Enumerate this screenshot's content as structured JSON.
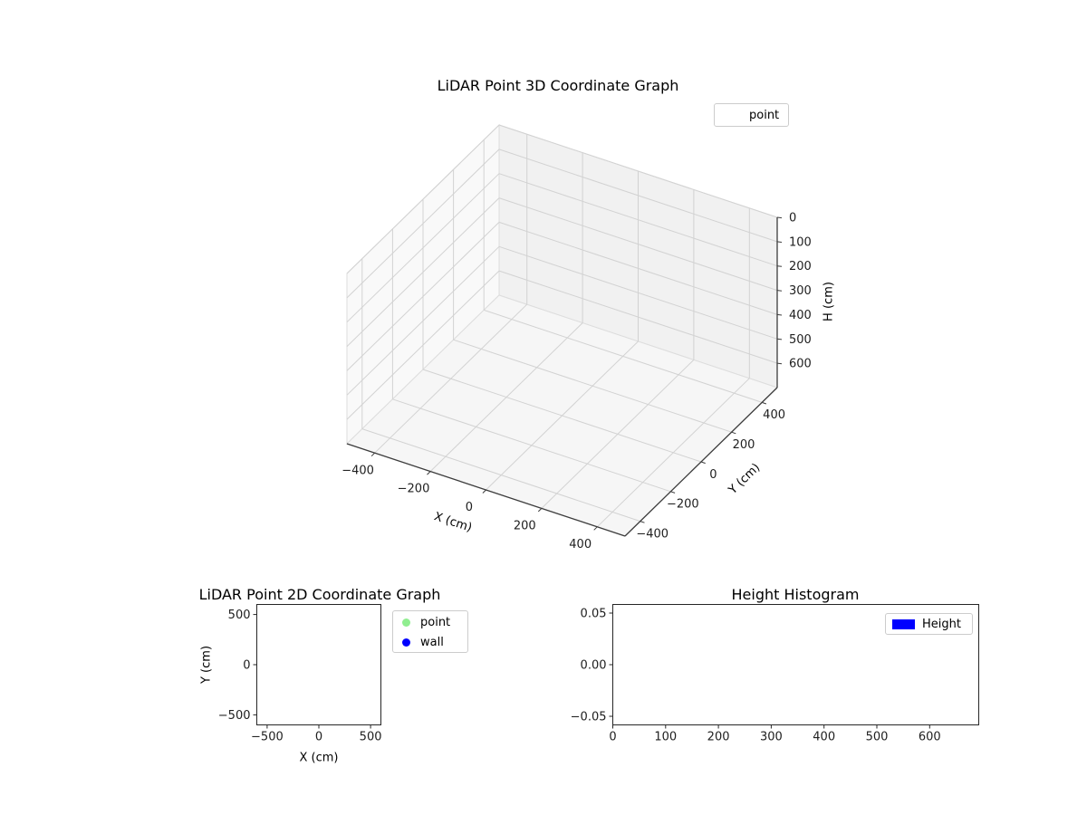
{
  "chart_data": [
    {
      "type": "scatter3d",
      "title": "LiDAR Point 3D Coordinate Graph",
      "xlabel": "X (cm)",
      "ylabel": "Y (cm)",
      "zlabel": "H (cm)",
      "xlim": [
        -500,
        500
      ],
      "ylim": [
        -500,
        500
      ],
      "zlim": [
        0,
        700
      ],
      "zaxis_inverted": true,
      "xticks": [
        -400,
        -200,
        0,
        200,
        400
      ],
      "yticks": [
        -400,
        -200,
        0,
        200,
        400
      ],
      "zticks": [
        0,
        100,
        200,
        300,
        400,
        500,
        600
      ],
      "grid": true,
      "pane_colors": {
        "x": "#f9f9f9",
        "y": "#f1f1f1",
        "z": "#f6f6f6"
      },
      "legend": {
        "position": "upper right",
        "items": [
          {
            "label": "point",
            "marker": "none",
            "color": null
          }
        ]
      },
      "series": [
        {
          "name": "point",
          "points": []
        }
      ]
    },
    {
      "type": "scatter",
      "title": "LiDAR Point 2D Coordinate Graph",
      "xlabel": "X (cm)",
      "ylabel": "Y (cm)",
      "xlim": [
        -600,
        600
      ],
      "ylim": [
        -600,
        600
      ],
      "xticks": [
        -500,
        0,
        500
      ],
      "yticks": [
        500,
        0,
        -500
      ],
      "grid": false,
      "legend": {
        "position": "outside upper right",
        "items": [
          {
            "label": "point",
            "marker": "circle",
            "color": "#90ee90"
          },
          {
            "label": "wall",
            "marker": "circle",
            "color": "#0000ff"
          }
        ]
      },
      "series": [
        {
          "name": "point",
          "color": "#90ee90",
          "points": []
        },
        {
          "name": "wall",
          "color": "#0000ff",
          "points": []
        }
      ]
    },
    {
      "type": "histogram",
      "title": "Height Histogram",
      "xlabel": "",
      "ylabel": "",
      "xlim": [
        0,
        693
      ],
      "ylim": [
        -0.0583,
        0.0583
      ],
      "xticks": [
        0,
        100,
        200,
        300,
        400,
        500,
        600
      ],
      "yticks": [
        0.05,
        0,
        -0.05
      ],
      "ytick_decimals": 2,
      "grid": false,
      "legend": {
        "position": "upper right",
        "items": [
          {
            "label": "Height",
            "marker": "rect",
            "color": "#0000ff"
          }
        ]
      },
      "series": [
        {
          "name": "Height",
          "color": "#0000ff",
          "values": [],
          "bins": []
        }
      ]
    }
  ]
}
